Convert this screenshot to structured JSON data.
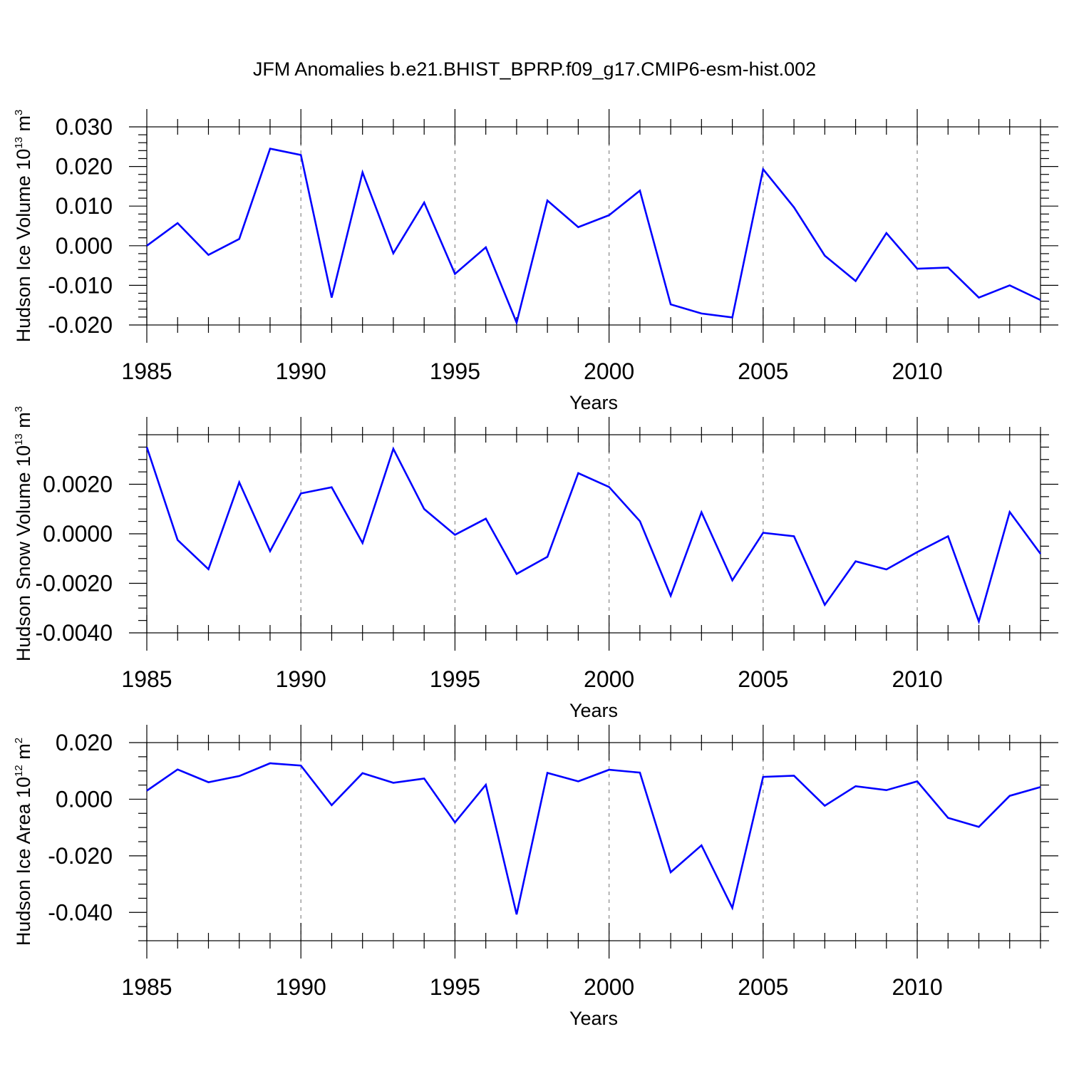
{
  "figure": {
    "title": "JFM Anomalies b.e21.BHIST_BPRP.f09_g17.CMIP6-esm-hist.002"
  },
  "colors": {
    "line": "#0000ff",
    "axis": "#000000",
    "grid": "#888888"
  },
  "chart_data": [
    {
      "type": "line",
      "name": "ice-volume",
      "ylabel": "Hudson Ice Volume 10",
      "ylabel_exp": "13",
      "ylabel_unit": " m",
      "ylabel_unit_exp": "3",
      "xlabel": "Years",
      "xlim": [
        1985,
        2014
      ],
      "ylim": [
        -0.02,
        0.03
      ],
      "grid_x": true,
      "x_ticks": [
        "1985",
        "1990",
        "1995",
        "2000",
        "2005",
        "2010"
      ],
      "y_ticks": [
        "-0.020",
        "-0.010",
        "0.000",
        "0.010",
        "0.020",
        "0.030"
      ],
      "y_tick_values": [
        -0.02,
        -0.01,
        0.0,
        0.01,
        0.02,
        0.03
      ],
      "y_minor_step": 0.002,
      "x": [
        1985,
        1986,
        1987,
        1988,
        1989,
        1990,
        1991,
        1992,
        1993,
        1994,
        1995,
        1996,
        1997,
        1998,
        1999,
        2000,
        2001,
        2002,
        2003,
        2004,
        2005,
        2006,
        2007,
        2008,
        2009,
        2010,
        2011,
        2012,
        2013,
        2014
      ],
      "values": [
        0.0,
        0.0057,
        -0.0023,
        0.0017,
        0.0245,
        0.0229,
        -0.0131,
        0.0185,
        -0.0019,
        0.0109,
        -0.0071,
        -0.0004,
        -0.0194,
        0.0114,
        0.0047,
        0.0077,
        0.0139,
        -0.0148,
        -0.0171,
        -0.0181,
        0.0193,
        0.0097,
        -0.0025,
        -0.0089,
        0.0032,
        -0.0058,
        -0.0055,
        -0.0131,
        -0.01,
        -0.0137
      ]
    },
    {
      "type": "line",
      "name": "snow-volume",
      "ylabel": "Hudson Snow Volume 10",
      "ylabel_exp": "13",
      "ylabel_unit": " m",
      "ylabel_unit_exp": "3",
      "xlabel": "Years",
      "xlim": [
        1985,
        2014
      ],
      "ylim": [
        -0.004,
        0.004
      ],
      "grid_x": true,
      "x_ticks": [
        "1985",
        "1990",
        "1995",
        "2000",
        "2005",
        "2010"
      ],
      "y_ticks": [
        "-0.0040",
        "-0.0020",
        "0.0000",
        "0.0020"
      ],
      "y_tick_values": [
        -0.004,
        -0.002,
        0.0,
        0.002
      ],
      "y_minor_step": 0.0005,
      "x": [
        1985,
        1986,
        1987,
        1988,
        1989,
        1990,
        1991,
        1992,
        1993,
        1994,
        1995,
        1996,
        1997,
        1998,
        1999,
        2000,
        2001,
        2002,
        2003,
        2004,
        2005,
        2006,
        2007,
        2008,
        2009,
        2010,
        2011,
        2012,
        2013,
        2014
      ],
      "values": [
        0.0035,
        -0.00025,
        -0.00143,
        0.00208,
        -0.0007,
        0.00163,
        0.00188,
        -0.00037,
        0.00343,
        0.001,
        -4e-05,
        0.00061,
        -0.00162,
        -0.00093,
        0.00245,
        0.00189,
        0.00051,
        -0.0025,
        0.00087,
        -0.00188,
        4e-05,
        -0.0001,
        -0.00287,
        -0.00111,
        -0.00144,
        -0.00074,
        -0.0001,
        -0.00354,
        0.00088,
        -0.00081
      ]
    },
    {
      "type": "line",
      "name": "ice-area",
      "ylabel": "Hudson Ice Area 10",
      "ylabel_exp": "12",
      "ylabel_unit": " m",
      "ylabel_unit_exp": "2",
      "xlabel": "Years",
      "xlim": [
        1985,
        2014
      ],
      "ylim": [
        -0.05,
        0.02
      ],
      "grid_x": true,
      "x_ticks": [
        "1985",
        "1990",
        "1995",
        "2000",
        "2005",
        "2010"
      ],
      "y_ticks": [
        "-0.040",
        "-0.020",
        "0.000",
        "0.020"
      ],
      "y_tick_values": [
        -0.04,
        -0.02,
        0.0,
        0.02
      ],
      "y_minor_step": 0.005,
      "x": [
        1985,
        1986,
        1987,
        1988,
        1989,
        1990,
        1991,
        1992,
        1993,
        1994,
        1995,
        1996,
        1997,
        1998,
        1999,
        2000,
        2001,
        2002,
        2003,
        2004,
        2005,
        2006,
        2007,
        2008,
        2009,
        2010,
        2011,
        2012,
        2013,
        2014
      ],
      "values": [
        0.003,
        0.0105,
        0.006,
        0.0082,
        0.0127,
        0.0119,
        -0.0021,
        0.0092,
        0.0058,
        0.0073,
        -0.0082,
        0.0051,
        -0.0407,
        0.0093,
        0.0063,
        0.0104,
        0.0094,
        -0.0258,
        -0.0163,
        -0.0384,
        0.0079,
        0.0083,
        -0.0023,
        0.0046,
        0.0032,
        0.0063,
        -0.0066,
        -0.0098,
        0.0012,
        0.0043
      ]
    }
  ]
}
